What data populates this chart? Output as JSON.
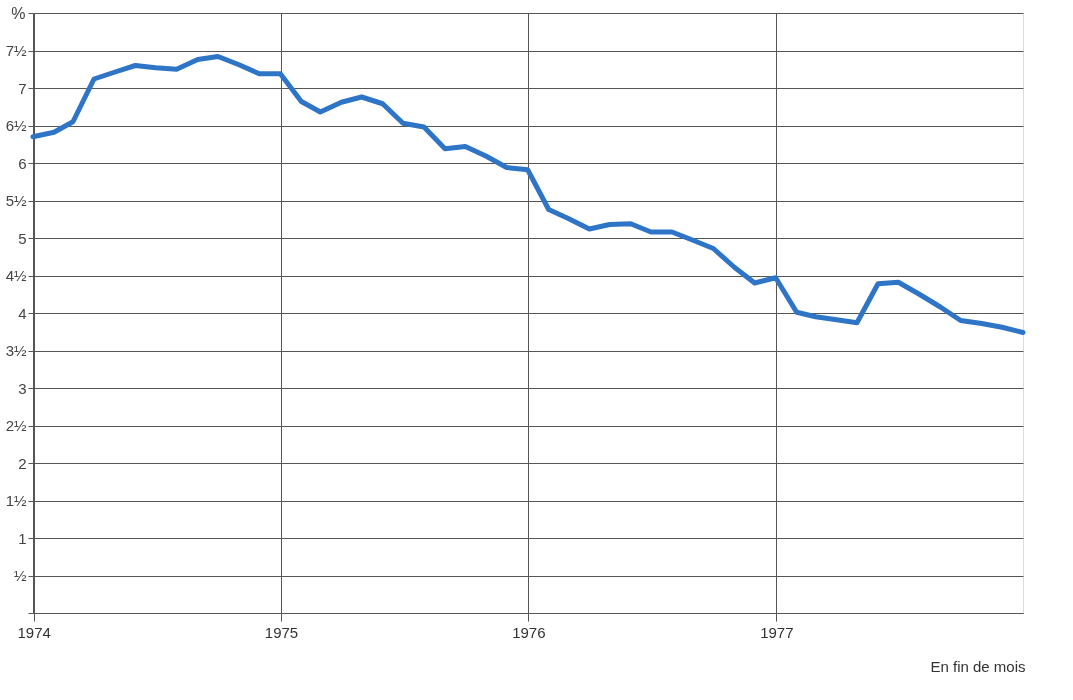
{
  "chart_data": {
    "type": "line",
    "ylabel": "%",
    "annotations": [
      "En fin de mois"
    ],
    "x": [
      "1973-12-31",
      "1974-01-31",
      "1974-02-28",
      "1974-03-31",
      "1974-04-30",
      "1974-05-31",
      "1974-06-30",
      "1974-07-31",
      "1974-08-31",
      "1974-09-30",
      "1974-10-31",
      "1974-11-30",
      "1974-12-31",
      "1975-01-31",
      "1975-02-28",
      "1975-03-31",
      "1975-04-30",
      "1975-05-31",
      "1975-06-30",
      "1975-07-31",
      "1975-08-31",
      "1975-09-30",
      "1975-10-31",
      "1975-11-30",
      "1975-12-31",
      "1976-01-31",
      "1976-02-29",
      "1976-03-31",
      "1976-04-30",
      "1976-05-31",
      "1976-06-30",
      "1976-07-31",
      "1976-08-31",
      "1976-09-30",
      "1976-10-31",
      "1976-11-30",
      "1976-12-31",
      "1977-01-31",
      "1977-02-28",
      "1977-03-31",
      "1977-04-30",
      "1977-05-31",
      "1977-06-30",
      "1977-07-31",
      "1977-08-31",
      "1977-09-30",
      "1977-10-31",
      "1977-11-30",
      "1977-12-31"
    ],
    "series": [
      {
        "color": "#2e75c8",
        "values": [
          6.35,
          6.41,
          6.55,
          7.12,
          7.21,
          7.3,
          7.27,
          7.25,
          7.38,
          7.42,
          7.31,
          7.19,
          7.19,
          6.82,
          6.68,
          6.81,
          6.88,
          6.79,
          6.53,
          6.48,
          6.19,
          6.22,
          6.09,
          5.94,
          5.91,
          5.38,
          5.26,
          5.12,
          5.18,
          5.19,
          5.08,
          5.08,
          4.97,
          4.86,
          4.61,
          4.4,
          4.47,
          4.01,
          3.95,
          3.91,
          3.87,
          4.39,
          4.41,
          4.25,
          4.08,
          3.9,
          3.86,
          3.81,
          3.74
        ]
      }
    ],
    "xlim": [
      "1973-12-31",
      "1977-12-31"
    ],
    "xticks": [
      {
        "value": "1974-01-01",
        "label": "1974"
      },
      {
        "value": "1975-01-01",
        "label": "1975"
      },
      {
        "value": "1976-01-01",
        "label": "1976"
      },
      {
        "value": "1977-01-01",
        "label": "1977"
      }
    ],
    "ylim": [
      0,
      8
    ],
    "yticks": [
      {
        "value": 0,
        "label": null
      },
      {
        "value": 0.5,
        "label": "½"
      },
      {
        "value": 1,
        "label": "1"
      },
      {
        "value": 1.5,
        "label": "1½"
      },
      {
        "value": 2,
        "label": "2"
      },
      {
        "value": 2.5,
        "label": "2½"
      },
      {
        "value": 3,
        "label": "3"
      },
      {
        "value": 3.5,
        "label": "3½"
      },
      {
        "value": 4,
        "label": "4"
      },
      {
        "value": 4.5,
        "label": "4½"
      },
      {
        "value": 5,
        "label": "5"
      },
      {
        "value": 5.5,
        "label": "5½"
      },
      {
        "value": 6,
        "label": "6"
      },
      {
        "value": 6.5,
        "label": "6½"
      },
      {
        "value": 7,
        "label": "7"
      },
      {
        "value": 7.5,
        "label": "7½"
      },
      {
        "value": 8,
        "label": null
      }
    ],
    "grid": true,
    "legend": false,
    "marker": "none",
    "line_style": "solid"
  }
}
